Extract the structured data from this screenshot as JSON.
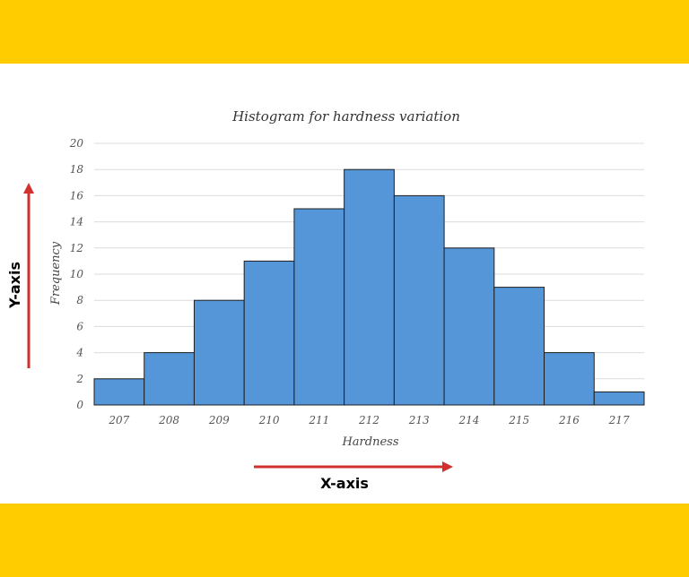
{
  "colors": {
    "band": "#ffcc00",
    "bar_fill": "#5596d8",
    "bar_stroke": "#1f1f1f",
    "grid": "#dcdcdc",
    "arrow": "#d0312d"
  },
  "annotations": {
    "y_axis_label": "Y-axis",
    "x_axis_label": "X-axis"
  },
  "chart_data": {
    "type": "bar",
    "title": "Histogram for hardness variation",
    "xlabel": "Hardness",
    "ylabel": "Frequency",
    "categories": [
      "207",
      "208",
      "209",
      "210",
      "211",
      "212",
      "213",
      "214",
      "215",
      "216",
      "217"
    ],
    "values": [
      2,
      4,
      8,
      11,
      15,
      18,
      16,
      12,
      9,
      4,
      1
    ],
    "ylim": [
      0,
      20
    ],
    "yticks": [
      0,
      2,
      4,
      6,
      8,
      10,
      12,
      14,
      16,
      18,
      20
    ],
    "grid": true,
    "legend": "none"
  }
}
